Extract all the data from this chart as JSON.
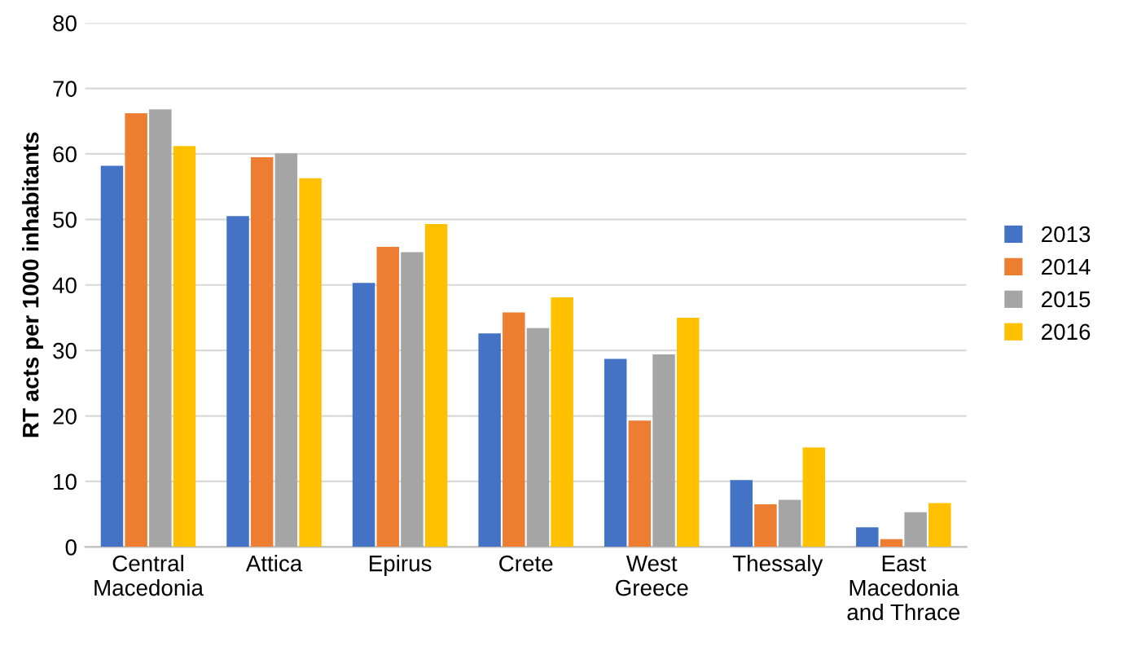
{
  "chart_data": {
    "type": "bar",
    "ylabel": "RT acts per 1000 inhabitants",
    "categories": [
      "Central\nMacedonia",
      "Attica",
      "Epirus",
      "Crete",
      "West\nGreece",
      "Thessaly",
      "East\nMacedonia\nand Thrace"
    ],
    "series": [
      {
        "name": "2013",
        "color": "#4472c4",
        "values": [
          58.2,
          50.5,
          40.3,
          32.6,
          28.7,
          10.2,
          3.0
        ]
      },
      {
        "name": "2014",
        "color": "#ed7d31",
        "values": [
          66.2,
          59.5,
          45.8,
          35.8,
          19.3,
          6.5,
          1.2
        ]
      },
      {
        "name": "2015",
        "color": "#a5a5a5",
        "values": [
          66.8,
          60.1,
          45.0,
          33.4,
          29.4,
          7.2,
          5.3
        ]
      },
      {
        "name": "2016",
        "color": "#ffc000",
        "values": [
          61.2,
          56.3,
          49.3,
          38.1,
          35.0,
          15.2,
          6.7
        ]
      }
    ],
    "ylim": [
      0,
      80
    ],
    "yticks": [
      0,
      10,
      20,
      30,
      40,
      50,
      60,
      70,
      80
    ],
    "grid": "y",
    "legend": "right"
  }
}
